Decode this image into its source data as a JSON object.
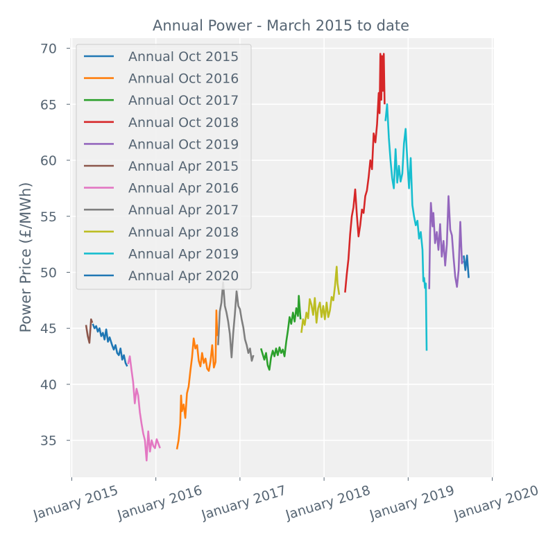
{
  "chart_data": {
    "type": "line",
    "title": "Annual Power - March 2015 to date",
    "xlabel": "",
    "ylabel": "Power Price (£/MWh)",
    "ylim": [
      31.7,
      70.9
    ],
    "xlim": [
      2014.98,
      2020.02
    ],
    "x_ticks": [
      {
        "value": 2015,
        "label": "January 2015"
      },
      {
        "value": 2016,
        "label": "January 2016"
      },
      {
        "value": 2017,
        "label": "January 2017"
      },
      {
        "value": 2018,
        "label": "January 2018"
      },
      {
        "value": 2019,
        "label": "January 2019"
      },
      {
        "value": 2020,
        "label": "January 2020"
      }
    ],
    "y_ticks": [
      35,
      40,
      45,
      50,
      55,
      60,
      65,
      70
    ],
    "grid": true,
    "legend_position": "top-left",
    "series": [
      {
        "name": "Annual Oct 2015",
        "color": "#1f77b4",
        "points": [
          [
            2015.25,
            45.4
          ],
          [
            2015.27,
            45.0
          ],
          [
            2015.29,
            45.2
          ],
          [
            2015.31,
            44.7
          ],
          [
            2015.33,
            45.0
          ],
          [
            2015.35,
            44.3
          ],
          [
            2015.37,
            44.6
          ],
          [
            2015.39,
            44.0
          ],
          [
            2015.41,
            44.9
          ],
          [
            2015.43,
            43.8
          ],
          [
            2015.45,
            44.2
          ],
          [
            2015.48,
            43.5
          ],
          [
            2015.5,
            43.1
          ],
          [
            2015.52,
            43.5
          ],
          [
            2015.54,
            42.8
          ],
          [
            2015.56,
            42.6
          ],
          [
            2015.58,
            43.2
          ],
          [
            2015.6,
            42.2
          ],
          [
            2015.62,
            42.6
          ],
          [
            2015.64,
            41.9
          ],
          [
            2015.66,
            41.6
          ]
        ]
      },
      {
        "name": "Annual Oct 2016",
        "color": "#ff7f0e",
        "points": [
          [
            2016.25,
            34.2
          ],
          [
            2016.27,
            35.0
          ],
          [
            2016.29,
            36.5
          ],
          [
            2016.3,
            39.0
          ],
          [
            2016.31,
            37.6
          ],
          [
            2016.33,
            38.2
          ],
          [
            2016.35,
            37.0
          ],
          [
            2016.37,
            39.2
          ],
          [
            2016.39,
            39.8
          ],
          [
            2016.41,
            41.2
          ],
          [
            2016.43,
            42.4
          ],
          [
            2016.45,
            44.1
          ],
          [
            2016.47,
            43.2
          ],
          [
            2016.49,
            43.5
          ],
          [
            2016.51,
            42.1
          ],
          [
            2016.53,
            41.6
          ],
          [
            2016.55,
            42.8
          ],
          [
            2016.57,
            41.9
          ],
          [
            2016.59,
            42.3
          ],
          [
            2016.61,
            41.4
          ],
          [
            2016.63,
            41.2
          ],
          [
            2016.65,
            42.1
          ],
          [
            2016.67,
            43.5
          ],
          [
            2016.69,
            41.5
          ],
          [
            2016.71,
            42.0
          ],
          [
            2016.72,
            46.6
          ],
          [
            2016.73,
            44.3
          ]
        ]
      },
      {
        "name": "Annual Oct 2017",
        "color": "#2ca02c",
        "points": [
          [
            2017.25,
            43.2
          ],
          [
            2017.27,
            42.7
          ],
          [
            2017.29,
            42.2
          ],
          [
            2017.31,
            42.8
          ],
          [
            2017.33,
            41.7
          ],
          [
            2017.35,
            41.3
          ],
          [
            2017.37,
            42.4
          ],
          [
            2017.39,
            43.0
          ],
          [
            2017.41,
            42.5
          ],
          [
            2017.43,
            43.2
          ],
          [
            2017.45,
            42.6
          ],
          [
            2017.47,
            43.3
          ],
          [
            2017.49,
            42.8
          ],
          [
            2017.51,
            43.1
          ],
          [
            2017.53,
            42.5
          ],
          [
            2017.55,
            43.8
          ],
          [
            2017.57,
            44.8
          ],
          [
            2017.59,
            46.0
          ],
          [
            2017.61,
            45.4
          ],
          [
            2017.63,
            46.4
          ],
          [
            2017.65,
            45.6
          ],
          [
            2017.67,
            46.8
          ],
          [
            2017.69,
            46.1
          ],
          [
            2017.7,
            47.9
          ],
          [
            2017.72,
            45.8
          ]
        ]
      },
      {
        "name": "Annual Oct 2018",
        "color": "#d62728",
        "points": [
          [
            2018.25,
            48.2
          ],
          [
            2018.27,
            49.8
          ],
          [
            2018.29,
            51.2
          ],
          [
            2018.31,
            53.4
          ],
          [
            2018.33,
            55.0
          ],
          [
            2018.35,
            55.8
          ],
          [
            2018.37,
            57.4
          ],
          [
            2018.39,
            55.1
          ],
          [
            2018.41,
            53.2
          ],
          [
            2018.43,
            54.2
          ],
          [
            2018.45,
            55.6
          ],
          [
            2018.47,
            55.3
          ],
          [
            2018.49,
            56.8
          ],
          [
            2018.51,
            57.3
          ],
          [
            2018.53,
            58.5
          ],
          [
            2018.55,
            60.0
          ],
          [
            2018.57,
            59.2
          ],
          [
            2018.59,
            62.4
          ],
          [
            2018.61,
            61.6
          ],
          [
            2018.63,
            63.2
          ],
          [
            2018.65,
            66.0
          ],
          [
            2018.66,
            64.2
          ],
          [
            2018.67,
            69.5
          ],
          [
            2018.68,
            65.4
          ],
          [
            2018.69,
            69.3
          ],
          [
            2018.7,
            66.2
          ],
          [
            2018.71,
            69.5
          ],
          [
            2018.72,
            65.0
          ]
        ]
      },
      {
        "name": "Annual Oct 2019",
        "color": "#9467bd",
        "points": [
          [
            2019.25,
            48.5
          ],
          [
            2019.26,
            53.5
          ],
          [
            2019.27,
            56.2
          ],
          [
            2019.29,
            54.1
          ],
          [
            2019.3,
            55.3
          ],
          [
            2019.32,
            52.6
          ],
          [
            2019.34,
            53.6
          ],
          [
            2019.36,
            52.0
          ],
          [
            2019.38,
            54.3
          ],
          [
            2019.4,
            51.4
          ],
          [
            2019.42,
            52.8
          ],
          [
            2019.44,
            50.6
          ],
          [
            2019.46,
            52.5
          ],
          [
            2019.48,
            56.8
          ],
          [
            2019.5,
            53.8
          ],
          [
            2019.52,
            53.3
          ],
          [
            2019.54,
            51.3
          ],
          [
            2019.56,
            49.6
          ],
          [
            2019.58,
            48.7
          ],
          [
            2019.6,
            50.2
          ],
          [
            2019.62,
            54.5
          ],
          [
            2019.64,
            50.8
          ],
          [
            2019.65,
            51.0
          ]
        ]
      },
      {
        "name": "Annual Apr 2015",
        "color": "#8c564b",
        "points": [
          [
            2015.17,
            45.3
          ],
          [
            2015.19,
            44.3
          ],
          [
            2015.21,
            43.7
          ],
          [
            2015.23,
            45.8
          ],
          [
            2015.245,
            45.5
          ]
        ]
      },
      {
        "name": "Annual Apr 2016",
        "color": "#e377c2",
        "points": [
          [
            2015.67,
            41.8
          ],
          [
            2015.69,
            42.5
          ],
          [
            2015.71,
            41.3
          ],
          [
            2015.73,
            40.2
          ],
          [
            2015.75,
            38.3
          ],
          [
            2015.77,
            39.6
          ],
          [
            2015.79,
            39.0
          ],
          [
            2015.81,
            37.5
          ],
          [
            2015.83,
            36.5
          ],
          [
            2015.85,
            35.6
          ],
          [
            2015.87,
            35.0
          ],
          [
            2015.89,
            33.2
          ],
          [
            2015.91,
            35.8
          ],
          [
            2015.93,
            34.0
          ],
          [
            2015.95,
            35.0
          ],
          [
            2015.97,
            34.5
          ],
          [
            2015.99,
            34.3
          ],
          [
            2016.01,
            35.1
          ],
          [
            2016.03,
            34.7
          ],
          [
            2016.05,
            34.3
          ]
        ]
      },
      {
        "name": "Annual Apr 2017",
        "color": "#7f7f7f",
        "points": [
          [
            2016.74,
            43.5
          ],
          [
            2016.76,
            46.5
          ],
          [
            2016.78,
            47.3
          ],
          [
            2016.8,
            49.1
          ],
          [
            2016.82,
            47.0
          ],
          [
            2016.84,
            46.4
          ],
          [
            2016.86,
            45.6
          ],
          [
            2016.88,
            44.5
          ],
          [
            2016.9,
            42.4
          ],
          [
            2016.92,
            44.6
          ],
          [
            2016.94,
            46.3
          ],
          [
            2016.96,
            48.3
          ],
          [
            2016.98,
            47.0
          ],
          [
            2017.0,
            46.7
          ],
          [
            2017.02,
            45.8
          ],
          [
            2017.04,
            45.1
          ],
          [
            2017.06,
            44.0
          ],
          [
            2017.08,
            43.5
          ],
          [
            2017.1,
            42.8
          ],
          [
            2017.12,
            43.2
          ],
          [
            2017.14,
            42.1
          ],
          [
            2017.16,
            42.6
          ]
        ]
      },
      {
        "name": "Annual Apr 2018",
        "color": "#bcbd22",
        "points": [
          [
            2017.73,
            44.6
          ],
          [
            2017.75,
            45.8
          ],
          [
            2017.77,
            45.3
          ],
          [
            2017.79,
            46.4
          ],
          [
            2017.81,
            45.9
          ],
          [
            2017.83,
            47.6
          ],
          [
            2017.85,
            47.1
          ],
          [
            2017.87,
            46.2
          ],
          [
            2017.89,
            47.7
          ],
          [
            2017.91,
            45.5
          ],
          [
            2017.93,
            46.8
          ],
          [
            2017.95,
            47.3
          ],
          [
            2017.97,
            46.0
          ],
          [
            2017.99,
            47.0
          ],
          [
            2018.01,
            45.8
          ],
          [
            2018.03,
            47.3
          ],
          [
            2018.05,
            46.0
          ],
          [
            2018.07,
            46.6
          ],
          [
            2018.09,
            47.8
          ],
          [
            2018.11,
            47.5
          ],
          [
            2018.13,
            48.8
          ],
          [
            2018.15,
            50.5
          ],
          [
            2018.16,
            49.0
          ],
          [
            2018.18,
            48.0
          ]
        ]
      },
      {
        "name": "Annual Apr 2019",
        "color": "#17becf",
        "points": [
          [
            2018.73,
            63.5
          ],
          [
            2018.75,
            65.0
          ],
          [
            2018.77,
            62.0
          ],
          [
            2018.79,
            60.0
          ],
          [
            2018.81,
            58.4
          ],
          [
            2018.83,
            57.5
          ],
          [
            2018.85,
            61.0
          ],
          [
            2018.87,
            58.0
          ],
          [
            2018.89,
            59.5
          ],
          [
            2018.91,
            58.1
          ],
          [
            2018.93,
            58.8
          ],
          [
            2018.95,
            61.5
          ],
          [
            2018.97,
            62.8
          ],
          [
            2018.99,
            60.0
          ],
          [
            2019.01,
            57.5
          ],
          [
            2019.03,
            60.2
          ],
          [
            2019.05,
            56.0
          ],
          [
            2019.07,
            55.0
          ],
          [
            2019.09,
            54.2
          ],
          [
            2019.11,
            54.6
          ],
          [
            2019.13,
            53.0
          ],
          [
            2019.15,
            53.6
          ],
          [
            2019.17,
            52.0
          ],
          [
            2019.18,
            49.2
          ],
          [
            2019.19,
            49.5
          ],
          [
            2019.2,
            48.6
          ],
          [
            2019.21,
            49.0
          ],
          [
            2019.22,
            43.0
          ]
        ]
      },
      {
        "name": "Annual Apr 2020",
        "color": "#1f77b4",
        "points": [
          [
            2019.66,
            51.5
          ],
          [
            2019.68,
            50.2
          ],
          [
            2019.7,
            51.5
          ],
          [
            2019.72,
            49.5
          ]
        ]
      }
    ]
  }
}
